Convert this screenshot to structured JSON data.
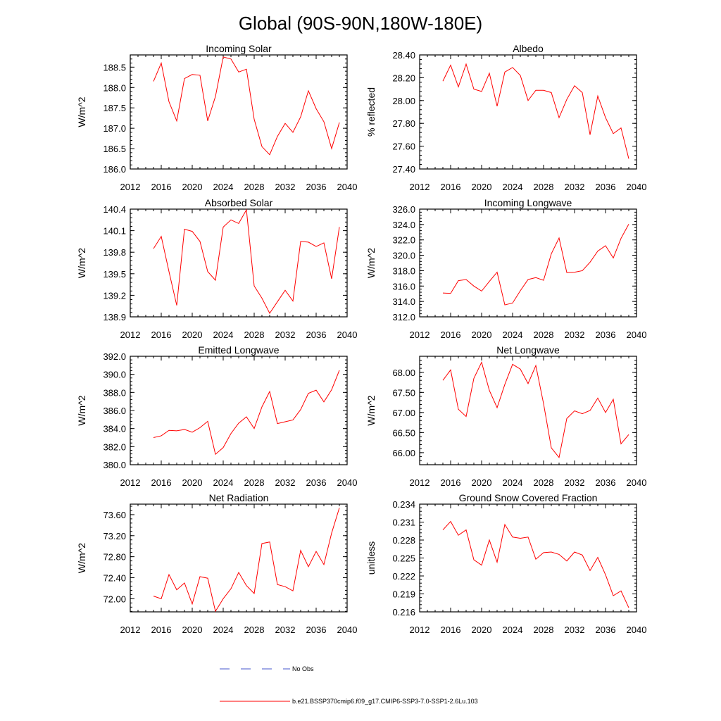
{
  "figure": {
    "title": "Global (90S-90N,180W-180E)"
  },
  "chart_data": [
    {
      "type": "line",
      "title": "Incoming Solar",
      "ylabel": "W/m^2",
      "xlim": [
        2012,
        2040
      ],
      "ylim": [
        186.0,
        188.8
      ],
      "xticks": [
        2012,
        2016,
        2020,
        2024,
        2028,
        2032,
        2036,
        2040
      ],
      "yticks": [
        "186.0",
        "186.5",
        "187.0",
        "187.5",
        "188.0",
        "188.5"
      ],
      "x": [
        2015,
        2016,
        2017,
        2018,
        2019,
        2020,
        2021,
        2022,
        2023,
        2024,
        2025,
        2026,
        2027,
        2028,
        2029,
        2030,
        2031,
        2032,
        2033,
        2034,
        2035,
        2036,
        2037,
        2038,
        2039
      ],
      "series": [
        {
          "name": "b.e21.BSSP370cmip6.f09_g17.CMIP6-SSP3-7.0-SSP1-2.6Lu.103",
          "color": "#ff0000",
          "values": [
            188.15,
            188.6,
            187.65,
            187.18,
            188.22,
            188.32,
            188.3,
            187.18,
            187.78,
            188.75,
            188.7,
            188.38,
            188.45,
            187.22,
            186.55,
            186.35,
            186.8,
            187.12,
            186.9,
            187.28,
            187.92,
            187.48,
            187.16,
            186.5,
            187.14
          ]
        }
      ]
    },
    {
      "type": "line",
      "title": "Albedo",
      "ylabel": "% reflected",
      "xlim": [
        2012,
        2040
      ],
      "ylim": [
        27.4,
        28.4
      ],
      "xticks": [
        2012,
        2016,
        2020,
        2024,
        2028,
        2032,
        2036,
        2040
      ],
      "yticks": [
        "27.40",
        "27.60",
        "27.80",
        "28.00",
        "28.20",
        "28.40"
      ],
      "x": [
        2015,
        2016,
        2017,
        2018,
        2019,
        2020,
        2021,
        2022,
        2023,
        2024,
        2025,
        2026,
        2027,
        2028,
        2029,
        2030,
        2031,
        2032,
        2033,
        2034,
        2035,
        2036,
        2037,
        2038,
        2039
      ],
      "series": [
        {
          "name": "b.e21.BSSP370cmip6.f09_g17.CMIP6-SSP3-7.0-SSP1-2.6Lu.103",
          "color": "#ff0000",
          "values": [
            28.17,
            28.31,
            28.12,
            28.32,
            28.1,
            28.08,
            28.24,
            27.95,
            28.25,
            28.29,
            28.22,
            28.0,
            28.09,
            28.09,
            28.07,
            27.85,
            28.01,
            28.13,
            28.07,
            27.7,
            28.04,
            27.85,
            27.71,
            27.76,
            27.49
          ]
        }
      ]
    },
    {
      "type": "line",
      "title": "Absorbed Solar",
      "ylabel": "W/m^2",
      "xlim": [
        2012,
        2040
      ],
      "ylim": [
        138.9,
        140.4
      ],
      "xticks": [
        2012,
        2016,
        2020,
        2024,
        2028,
        2032,
        2036,
        2040
      ],
      "yticks": [
        "138.9",
        "139.2",
        "139.5",
        "139.8",
        "140.1",
        "140.4"
      ],
      "x": [
        2015,
        2016,
        2017,
        2018,
        2019,
        2020,
        2021,
        2022,
        2023,
        2024,
        2025,
        2026,
        2027,
        2028,
        2029,
        2030,
        2031,
        2032,
        2033,
        2034,
        2035,
        2036,
        2037,
        2038,
        2039
      ],
      "series": [
        {
          "name": "b.e21.BSSP370cmip6.f09_g17.CMIP6-SSP3-7.0-SSP1-2.6Lu.103",
          "color": "#ff0000",
          "values": [
            139.85,
            140.02,
            139.53,
            139.06,
            140.12,
            140.09,
            139.95,
            139.53,
            139.41,
            140.15,
            140.25,
            140.2,
            140.39,
            139.33,
            139.16,
            138.95,
            139.11,
            139.27,
            139.12,
            139.95,
            139.94,
            139.88,
            139.93,
            139.43,
            140.15
          ]
        }
      ]
    },
    {
      "type": "line",
      "title": "Incoming Longwave",
      "ylabel": "W/m^2",
      "xlim": [
        2012,
        2040
      ],
      "ylim": [
        312.0,
        326.0
      ],
      "xticks": [
        2012,
        2016,
        2020,
        2024,
        2028,
        2032,
        2036,
        2040
      ],
      "yticks": [
        "312.0",
        "314.0",
        "316.0",
        "318.0",
        "320.0",
        "322.0",
        "324.0",
        "326.0"
      ],
      "x": [
        2015,
        2016,
        2017,
        2018,
        2019,
        2020,
        2021,
        2022,
        2023,
        2024,
        2025,
        2026,
        2027,
        2028,
        2029,
        2030,
        2031,
        2032,
        2033,
        2034,
        2035,
        2036,
        2037,
        2038,
        2039
      ],
      "series": [
        {
          "name": "b.e21.BSSP370cmip6.f09_g17.CMIP6-SSP3-7.0-SSP1-2.6Lu.103",
          "color": "#ff0000",
          "values": [
            315.1,
            315.05,
            316.7,
            316.85,
            316.0,
            315.35,
            316.6,
            317.8,
            313.55,
            313.8,
            315.4,
            316.85,
            317.1,
            316.75,
            320.2,
            322.25,
            317.75,
            317.8,
            318.0,
            319.1,
            320.55,
            321.25,
            319.65,
            322.2,
            324.05
          ]
        }
      ]
    },
    {
      "type": "line",
      "title": "Emitted Longwave",
      "ylabel": "W/m^2",
      "xlim": [
        2012,
        2040
      ],
      "ylim": [
        380.0,
        392.0
      ],
      "xticks": [
        2012,
        2016,
        2020,
        2024,
        2028,
        2032,
        2036,
        2040
      ],
      "yticks": [
        "380.0",
        "382.0",
        "384.0",
        "386.0",
        "388.0",
        "390.0",
        "392.0"
      ],
      "x": [
        2015,
        2016,
        2017,
        2018,
        2019,
        2020,
        2021,
        2022,
        2023,
        2024,
        2025,
        2026,
        2027,
        2028,
        2029,
        2030,
        2031,
        2032,
        2033,
        2034,
        2035,
        2036,
        2037,
        2038,
        2039
      ],
      "series": [
        {
          "name": "b.e21.BSSP370cmip6.f09_g17.CMIP6-SSP3-7.0-SSP1-2.6Lu.103",
          "color": "#ff0000",
          "values": [
            383.0,
            383.2,
            383.8,
            383.75,
            383.9,
            383.6,
            384.1,
            384.8,
            381.15,
            381.9,
            383.45,
            384.6,
            385.3,
            384.0,
            386.4,
            388.1,
            384.55,
            384.75,
            384.95,
            386.1,
            387.9,
            388.25,
            386.95,
            388.3,
            390.45
          ]
        }
      ]
    },
    {
      "type": "line",
      "title": "Net Longwave",
      "ylabel": "W/m^2",
      "xlim": [
        2012,
        2040
      ],
      "ylim": [
        65.7,
        68.4
      ],
      "xticks": [
        2012,
        2016,
        2020,
        2024,
        2028,
        2032,
        2036,
        2040
      ],
      "yticks": [
        "66.00",
        "66.50",
        "67.00",
        "67.50",
        "68.00"
      ],
      "ytick_values": [
        66.0,
        66.5,
        67.0,
        67.5,
        68.0
      ],
      "x": [
        2015,
        2016,
        2017,
        2018,
        2019,
        2020,
        2021,
        2022,
        2023,
        2024,
        2025,
        2026,
        2027,
        2028,
        2029,
        2030,
        2031,
        2032,
        2033,
        2034,
        2035,
        2036,
        2037,
        2038,
        2039
      ],
      "series": [
        {
          "name": "b.e21.BSSP370cmip6.f09_g17.CMIP6-SSP3-7.0-SSP1-2.6Lu.103",
          "color": "#ff0000",
          "values": [
            67.8,
            68.06,
            67.08,
            66.9,
            67.85,
            68.25,
            67.55,
            67.12,
            67.7,
            68.2,
            68.08,
            67.72,
            68.17,
            67.22,
            66.12,
            65.88,
            66.85,
            67.04,
            66.97,
            67.05,
            67.36,
            67.0,
            67.33,
            66.22,
            66.45
          ]
        }
      ]
    },
    {
      "type": "line",
      "title": "Net Radiation",
      "ylabel": "W/m^2",
      "xlim": [
        2012,
        2040
      ],
      "ylim": [
        71.75,
        73.8
      ],
      "xticks": [
        2012,
        2016,
        2020,
        2024,
        2028,
        2032,
        2036,
        2040
      ],
      "yticks": [
        "72.00",
        "72.40",
        "72.80",
        "73.20",
        "73.60"
      ],
      "ytick_values": [
        72.0,
        72.4,
        72.8,
        73.2,
        73.6
      ],
      "x": [
        2015,
        2016,
        2017,
        2018,
        2019,
        2020,
        2021,
        2022,
        2023,
        2024,
        2025,
        2026,
        2027,
        2028,
        2029,
        2030,
        2031,
        2032,
        2033,
        2034,
        2035,
        2036,
        2037,
        2038,
        2039
      ],
      "series": [
        {
          "name": "b.e21.BSSP370cmip6.f09_g17.CMIP6-SSP3-7.0-SSP1-2.6Lu.103",
          "color": "#ff0000",
          "values": [
            72.05,
            72.0,
            72.46,
            72.17,
            72.3,
            71.9,
            72.42,
            72.39,
            71.76,
            72.0,
            72.19,
            72.5,
            72.25,
            72.1,
            73.05,
            73.08,
            72.27,
            72.23,
            72.15,
            72.92,
            72.61,
            72.9,
            72.65,
            73.25,
            73.73
          ]
        }
      ]
    },
    {
      "type": "line",
      "title": "Ground Snow Covered Fraction",
      "ylabel": "unitless",
      "xlim": [
        2012,
        2040
      ],
      "ylim": [
        0.216,
        0.234
      ],
      "xticks": [
        2012,
        2016,
        2020,
        2024,
        2028,
        2032,
        2036,
        2040
      ],
      "yticks": [
        "0.216",
        "0.219",
        "0.222",
        "0.225",
        "0.228",
        "0.231",
        "0.234"
      ],
      "x": [
        2015,
        2016,
        2017,
        2018,
        2019,
        2020,
        2021,
        2022,
        2023,
        2024,
        2025,
        2026,
        2027,
        2028,
        2029,
        2030,
        2031,
        2032,
        2033,
        2034,
        2035,
        2036,
        2037,
        2038,
        2039
      ],
      "series": [
        {
          "name": "b.e21.BSSP370cmip6.f09_g17.CMIP6-SSP3-7.0-SSP1-2.6Lu.103",
          "color": "#ff0000",
          "values": [
            0.2297,
            0.2311,
            0.2288,
            0.2297,
            0.2247,
            0.2238,
            0.228,
            0.2243,
            0.2306,
            0.2285,
            0.2283,
            0.2285,
            0.2248,
            0.2259,
            0.226,
            0.2256,
            0.2245,
            0.226,
            0.2255,
            0.2229,
            0.2251,
            0.2222,
            0.2187,
            0.2195,
            0.2167
          ]
        }
      ]
    }
  ],
  "legend": {
    "no_obs_label": "No Obs",
    "no_obs_color": "#4455cc",
    "model_label": "b.e21.BSSP370cmip6.f09_g17.CMIP6-SSP3-7.0-SSP1-2.6Lu.103",
    "model_color": "#ff0000"
  }
}
